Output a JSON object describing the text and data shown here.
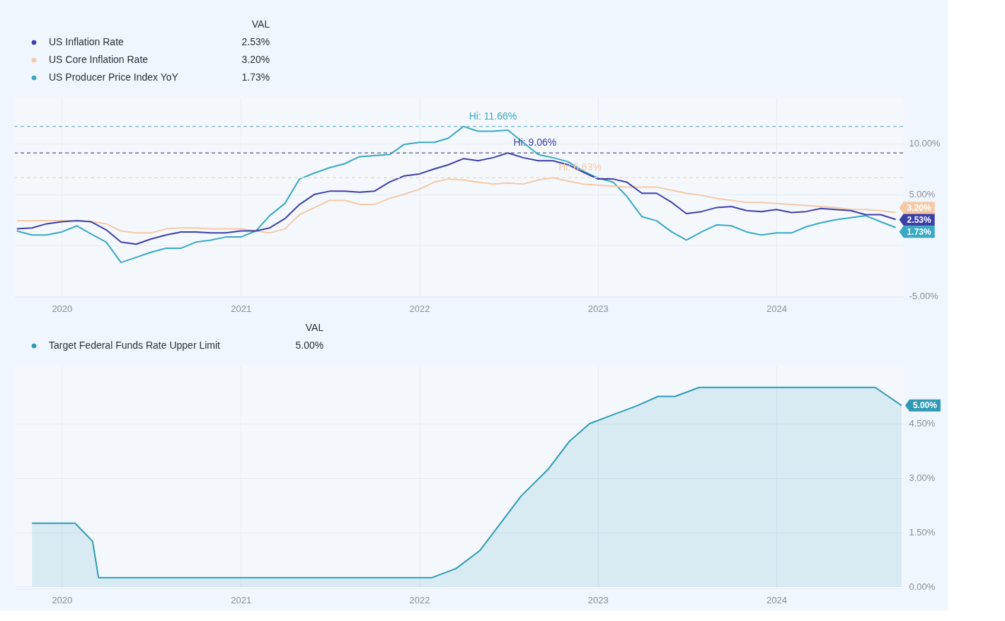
{
  "chart_data": [
    {
      "type": "line",
      "x": [
        "2019-10",
        "2019-11",
        "2019-12",
        "2020-01",
        "2020-02",
        "2020-03",
        "2020-04",
        "2020-05",
        "2020-06",
        "2020-07",
        "2020-08",
        "2020-09",
        "2020-10",
        "2020-11",
        "2020-12",
        "2021-01",
        "2021-02",
        "2021-03",
        "2021-04",
        "2021-05",
        "2021-06",
        "2021-07",
        "2021-08",
        "2021-09",
        "2021-10",
        "2021-11",
        "2021-12",
        "2022-01",
        "2022-02",
        "2022-03",
        "2022-04",
        "2022-05",
        "2022-06",
        "2022-07",
        "2022-08",
        "2022-09",
        "2022-10",
        "2022-11",
        "2022-12",
        "2023-01",
        "2023-02",
        "2023-03",
        "2023-04",
        "2023-05",
        "2023-06",
        "2023-07",
        "2023-08",
        "2023-09",
        "2023-10",
        "2023-11",
        "2023-12",
        "2024-01",
        "2024-02",
        "2024-03",
        "2024-04",
        "2024-05",
        "2024-06",
        "2024-07",
        "2024-08",
        "2024-09"
      ],
      "xlim": [
        "2019-09-27",
        "2024-09-16"
      ],
      "xticks": [
        "2020",
        "2021",
        "2022",
        "2023",
        "2024"
      ],
      "ylim": [
        -5.1,
        14.5
      ],
      "yticks": [
        {
          "value": -5,
          "label": "-5.00%"
        },
        {
          "value": 0,
          "label": null
        },
        {
          "value": 5,
          "label": "5.00%"
        },
        {
          "value": 10,
          "label": "10.00%"
        }
      ],
      "grid": true,
      "legend": "top left",
      "legend_title": "VAL",
      "line_style": "solid",
      "series": [
        {
          "name": "US Inflation Rate",
          "color": "#3d3fa6",
          "values": [
            1.6,
            1.7,
            2.1,
            2.3,
            2.4,
            2.3,
            1.5,
            0.3,
            0.1,
            0.6,
            1.0,
            1.3,
            1.3,
            1.2,
            1.2,
            1.4,
            1.4,
            1.7,
            2.6,
            4.0,
            5.0,
            5.3,
            5.3,
            5.2,
            5.3,
            6.2,
            6.8,
            7.0,
            7.5,
            7.9,
            8.5,
            8.3,
            8.6,
            9.06,
            8.6,
            8.3,
            8.3,
            7.9,
            7.2,
            6.5,
            6.5,
            6.2,
            5.1,
            5.1,
            4.2,
            3.1,
            3.3,
            3.7,
            3.8,
            3.4,
            3.3,
            3.5,
            3.2,
            3.3,
            3.6,
            3.5,
            3.4,
            3.0,
            3.0,
            2.53
          ],
          "value_labels": [
            null,
            null,
            null,
            null,
            null,
            null,
            null,
            null,
            null,
            null,
            null,
            null,
            null,
            null,
            null,
            null,
            null,
            null,
            null,
            null,
            null,
            null,
            null,
            null,
            null,
            null,
            null,
            null,
            null,
            null,
            null,
            null,
            null,
            null,
            null,
            null,
            null,
            null,
            null,
            null,
            null,
            null,
            null,
            null,
            null,
            null,
            null,
            null,
            null,
            null,
            null,
            null,
            null,
            null,
            null,
            null,
            null,
            null,
            null,
            "2.53%"
          ]
        },
        {
          "name": "US Core Inflation Rate",
          "color": "#f5c9a6",
          "values": [
            2.4,
            2.4,
            2.4,
            2.4,
            2.4,
            2.3,
            2.1,
            1.4,
            1.2,
            1.2,
            1.6,
            1.7,
            1.7,
            1.6,
            1.6,
            1.6,
            1.4,
            1.2,
            1.6,
            3.0,
            3.7,
            4.4,
            4.4,
            4.0,
            4.0,
            4.6,
            5.0,
            5.5,
            6.2,
            6.5,
            6.4,
            6.2,
            6.0,
            6.1,
            6.0,
            6.4,
            6.63,
            6.3,
            6.0,
            5.9,
            5.8,
            5.7,
            5.7,
            5.7,
            5.4,
            5.1,
            4.9,
            4.6,
            4.4,
            4.2,
            4.2,
            4.1,
            4.0,
            3.9,
            3.8,
            3.7,
            3.5,
            3.5,
            3.4,
            3.2
          ],
          "value_labels": [
            null,
            null,
            null,
            null,
            null,
            null,
            null,
            null,
            null,
            null,
            null,
            null,
            null,
            null,
            null,
            null,
            null,
            null,
            null,
            null,
            null,
            null,
            null,
            null,
            null,
            null,
            null,
            null,
            null,
            null,
            null,
            null,
            null,
            null,
            null,
            null,
            null,
            null,
            null,
            null,
            null,
            null,
            null,
            null,
            null,
            null,
            null,
            null,
            null,
            null,
            null,
            null,
            null,
            null,
            null,
            null,
            null,
            null,
            null,
            "3.20%"
          ]
        },
        {
          "name": "US Producer Price Index YoY",
          "color": "#38a9c4",
          "values": [
            1.4,
            1.0,
            1.0,
            1.3,
            1.9,
            1.1,
            0.3,
            -1.7,
            -1.2,
            -0.7,
            -0.3,
            -0.3,
            0.3,
            0.5,
            0.8,
            0.8,
            1.4,
            2.9,
            4.1,
            6.5,
            7.1,
            7.6,
            8.0,
            8.7,
            8.8,
            8.9,
            9.9,
            10.1,
            10.1,
            10.5,
            11.66,
            11.2,
            11.2,
            11.3,
            10.1,
            8.9,
            8.6,
            8.2,
            7.3,
            6.6,
            6.2,
            4.8,
            2.8,
            2.4,
            1.3,
            0.5,
            1.3,
            2.0,
            1.9,
            1.3,
            1.0,
            1.2,
            1.2,
            1.8,
            2.2,
            2.5,
            2.7,
            2.9,
            2.3,
            1.73
          ],
          "value_labels": [
            null,
            null,
            null,
            null,
            null,
            null,
            null,
            null,
            null,
            null,
            null,
            null,
            null,
            null,
            null,
            null,
            null,
            null,
            null,
            null,
            null,
            null,
            null,
            null,
            null,
            null,
            null,
            null,
            null,
            null,
            null,
            null,
            null,
            null,
            null,
            null,
            null,
            null,
            null,
            null,
            null,
            null,
            null,
            null,
            null,
            null,
            null,
            null,
            null,
            null,
            null,
            null,
            null,
            null,
            null,
            null,
            null,
            null,
            null,
            "1.73%"
          ]
        }
      ],
      "ref_lines": [
        {
          "axis": "y",
          "value": 11.66,
          "color": "#7fbfd2",
          "line_style": "dashed"
        },
        {
          "axis": "y",
          "value": 9.06,
          "color": "#6e6f98",
          "line_style": "dashed"
        },
        {
          "axis": "y",
          "value": 6.63,
          "color": "#f3d8c4",
          "line_style": "dashed"
        }
      ],
      "annotations": [
        {
          "text": "Hi: 9.06%",
          "x": "2022-07",
          "y": 9.06
        },
        {
          "text": "Hi: 6.63%",
          "x": "2022-10",
          "y": 6.63
        },
        {
          "text": "Hi: 11.66%",
          "x": "2022-04",
          "y": 11.66
        }
      ]
    },
    {
      "type": "area",
      "xlim": [
        "2019-09-27",
        "2024-09-16"
      ],
      "xticks": [
        "2020",
        "2021",
        "2022",
        "2023",
        "2024"
      ],
      "ylim": [
        -0.05,
        6.1
      ],
      "yticks": [
        {
          "value": 0,
          "label": "0.00%"
        },
        {
          "value": 1.5,
          "label": "1.50%"
        },
        {
          "value": 3,
          "label": "3.00%"
        },
        {
          "value": 4.5,
          "label": "4.50%"
        }
      ],
      "grid": true,
      "legend": "top left",
      "legend_title": "VAL",
      "line_style": "solid",
      "series": [
        {
          "name": "Target Federal Funds Rate Upper Limit",
          "color": "#2f9ab5",
          "x": [
            "2019-11-01",
            "2020-01-28",
            "2020-03-04",
            "2020-03-16",
            "2022-01-27",
            "2022-03-17",
            "2022-05-05",
            "2022-07-28",
            "2022-09-22",
            "2022-11-03",
            "2022-12-15",
            "2023-02-02",
            "2023-03-23",
            "2023-05-04",
            "2023-06-08",
            "2023-07-27",
            "2024-07-21",
            "2024-09-13"
          ],
          "values": [
            1.75,
            1.75,
            1.25,
            0.25,
            0.25,
            0.5,
            1.0,
            2.5,
            3.25,
            4.0,
            4.5,
            4.75,
            5.0,
            5.25,
            5.25,
            5.5,
            5.5,
            5.0
          ],
          "value_labels": [
            null,
            null,
            null,
            null,
            null,
            null,
            null,
            null,
            null,
            null,
            null,
            null,
            null,
            null,
            null,
            null,
            null,
            "5.00%"
          ]
        }
      ]
    }
  ]
}
